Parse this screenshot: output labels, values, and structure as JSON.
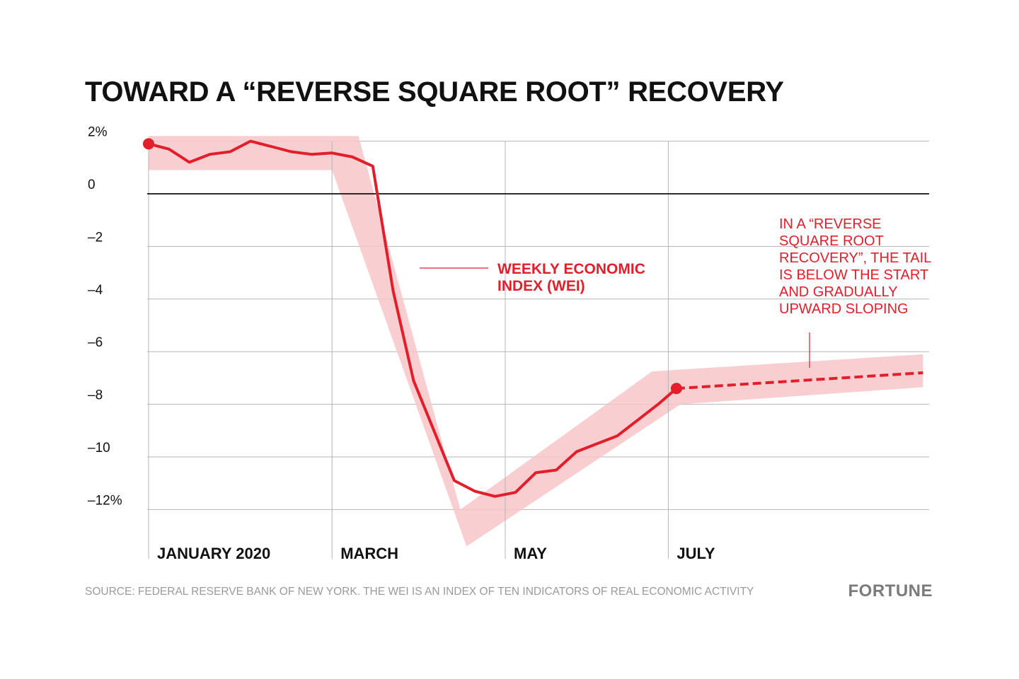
{
  "colors": {
    "accent": "#e31e2b",
    "band": "#f7c6c9",
    "grid": "#b5b5b5",
    "zero_line": "#111111",
    "text": "#111111",
    "muted": "#9a9a9a"
  },
  "chart_data": {
    "type": "line",
    "title": "TOWARD A “REVERSE SQUARE ROOT” RECOVERY",
    "xlabel": "",
    "ylabel": "",
    "ylim": [
      -12,
      2
    ],
    "y_ticks": [
      {
        "value": 2,
        "label": "2%"
      },
      {
        "value": 0,
        "label": "0"
      },
      {
        "value": -2,
        "label": "–2"
      },
      {
        "value": -4,
        "label": "–4"
      },
      {
        "value": -6,
        "label": "–6"
      },
      {
        "value": -8,
        "label": "–8"
      },
      {
        "value": -10,
        "label": "–10"
      },
      {
        "value": -12,
        "label": "–12%"
      }
    ],
    "x_ticks": [
      {
        "week": 0,
        "label": "JANUARY 2020"
      },
      {
        "week": 9,
        "label": "MARCH"
      },
      {
        "week": 17.5,
        "label": "MAY"
      },
      {
        "week": 25.5,
        "label": "JULY"
      }
    ],
    "grid": true,
    "series": [
      {
        "name": "WEEKLY ECONOMIC INDEX (WEI)",
        "style": "solid",
        "x": [
          0,
          1,
          2,
          3,
          4,
          5,
          6,
          7,
          8,
          9,
          10,
          11,
          12,
          13,
          14,
          15,
          16,
          17,
          18,
          19,
          20,
          21,
          22,
          23,
          24,
          25,
          25.9
        ],
        "values": [
          1.9,
          1.7,
          1.2,
          1.5,
          1.6,
          2.0,
          1.8,
          1.6,
          1.5,
          1.55,
          1.4,
          1.05,
          -3.7,
          -7.1,
          -9.0,
          -10.9,
          -11.3,
          -11.5,
          -11.35,
          -10.6,
          -10.5,
          -9.8,
          -9.5,
          -9.2,
          -8.6,
          -8.0,
          -7.4
        ]
      },
      {
        "name": "",
        "style": "dashed",
        "x": [
          25.9,
          38
        ],
        "values": [
          -7.4,
          -6.8
        ]
      }
    ],
    "band": {
      "x": [
        0,
        9,
        10.3,
        15.3,
        24.7,
        38,
        38,
        26.1,
        15.6,
        9,
        0
      ],
      "values": [
        2.2,
        2.2,
        2.2,
        -12.0,
        -6.75,
        -6.1,
        -7.35,
        -8.0,
        -13.4,
        0.9,
        0.9
      ]
    },
    "annotations": {
      "series_label": [
        "WEEKLY ECONOMIC",
        "INDEX (WEI)"
      ],
      "callout": [
        "IN A “REVERSE",
        "SQUARE ROOT",
        "RECOVERY”, THE TAIL",
        "IS BELOW THE START",
        "AND GRADUALLY",
        "UPWARD SLOPING"
      ]
    }
  },
  "source_note": "SOURCE: FEDERAL RESERVE BANK OF NEW YORK. THE WEI IS AN INDEX OF TEN INDICATORS OF REAL ECONOMIC ACTIVITY",
  "brand": "FORTUNE"
}
